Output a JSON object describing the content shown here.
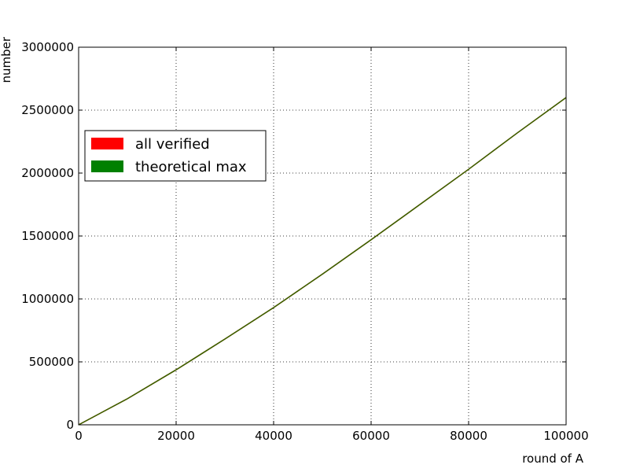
{
  "chart_data": {
    "type": "line",
    "title": "",
    "xlabel": "round of A",
    "ylabel": "number",
    "xlim": [
      0,
      100000
    ],
    "ylim": [
      0,
      3000000
    ],
    "x_ticks": [
      0,
      20000,
      40000,
      60000,
      80000,
      100000
    ],
    "x_tick_labels": [
      "0",
      "20000",
      "40000",
      "60000",
      "80000",
      "100000"
    ],
    "y_ticks": [
      0,
      500000,
      1000000,
      1500000,
      2000000,
      2500000,
      3000000
    ],
    "y_tick_labels": [
      "0",
      "500000",
      "1000000",
      "1500000",
      "2000000",
      "2500000",
      "3000000"
    ],
    "grid": true,
    "grid_style": "dotted",
    "legend_position": "upper-left",
    "legend": [
      {
        "label": "all verified",
        "color": "#ff0000"
      },
      {
        "label": "theoretical max",
        "color": "#008000"
      }
    ],
    "series": [
      {
        "name": "all verified",
        "color": "#ff0000",
        "x": [
          0,
          10000,
          20000,
          30000,
          40000,
          50000,
          60000,
          70000,
          80000,
          90000,
          100000
        ],
        "y": [
          0,
          207000,
          437000,
          681000,
          931000,
          1197000,
          1470000,
          1750000,
          2030000,
          2319000,
          2600000
        ]
      },
      {
        "name": "theoretical max",
        "color": "#008000",
        "x": [
          0,
          10000,
          20000,
          30000,
          40000,
          50000,
          60000,
          70000,
          80000,
          90000,
          100000
        ],
        "y": [
          0,
          207000,
          437000,
          681000,
          931000,
          1197000,
          1470000,
          1750000,
          2030000,
          2319000,
          2600000
        ]
      }
    ],
    "combined_line_color": "#336600"
  }
}
